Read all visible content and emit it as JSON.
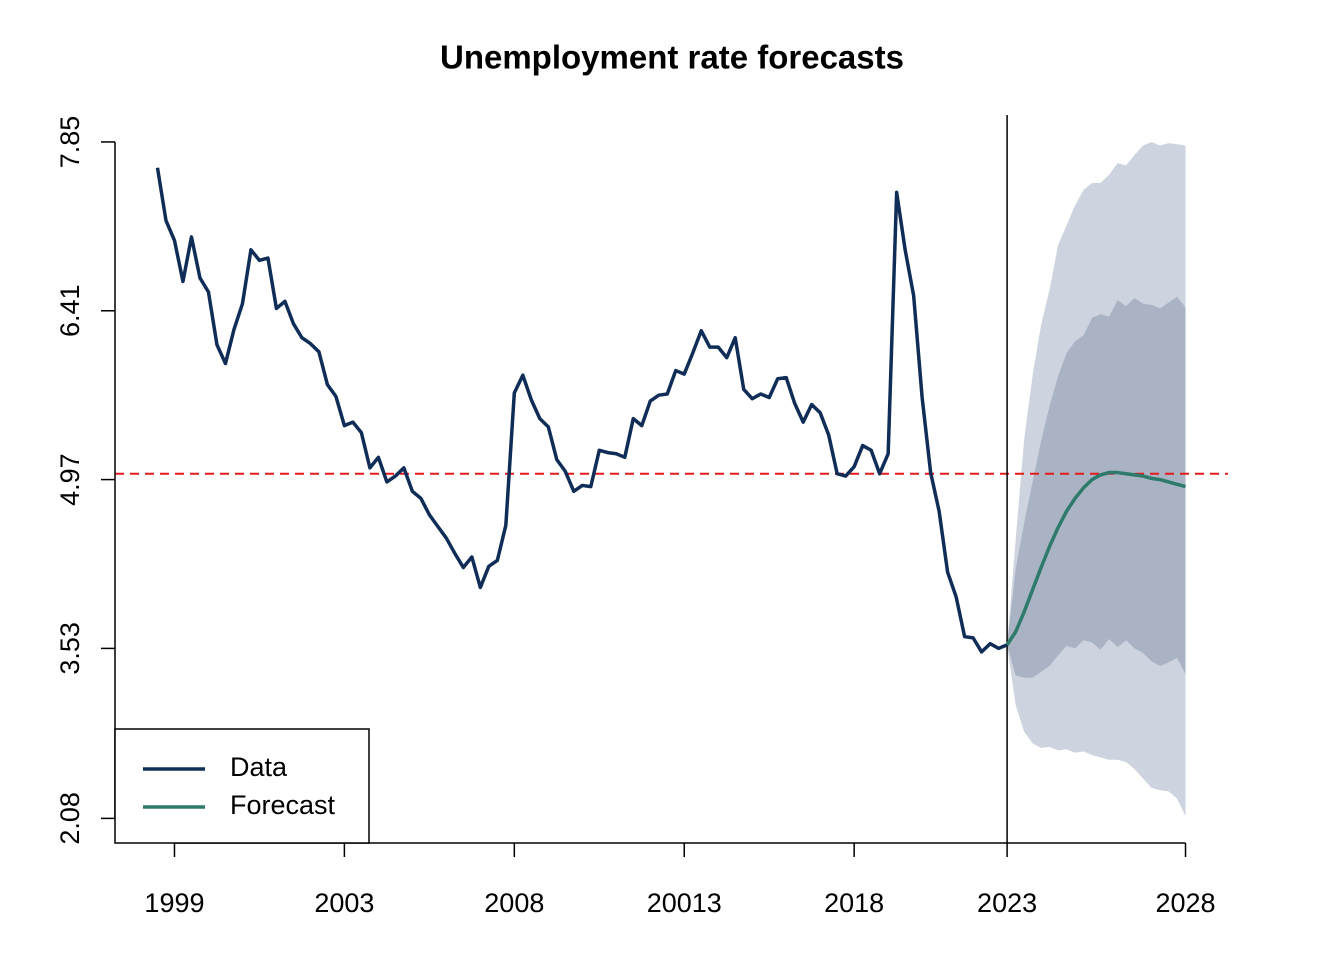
{
  "chart_data": {
    "type": "line",
    "title": "Unemployment rate forecasts",
    "xlim": [
      -4,
      127
    ],
    "ylim": [
      1.87,
      8.08
    ],
    "xticks": [
      {
        "value": 3,
        "label": "1999"
      },
      {
        "value": 23,
        "label": "2003"
      },
      {
        "value": 43,
        "label": "2008"
      },
      {
        "value": 63,
        "label": "20013"
      },
      {
        "value": 83,
        "label": "2018"
      },
      {
        "value": 101,
        "label": "2023"
      },
      {
        "value": 122,
        "label": "2028"
      }
    ],
    "yticks": [
      2.08,
      3.53,
      4.97,
      6.41,
      7.85
    ],
    "legend": "bottomleft",
    "hline": {
      "value": 5.02,
      "color": "#e41a1c"
    },
    "vline": 101,
    "series": [
      {
        "name": "Data",
        "color": "#0f2d57",
        "x": [
          1,
          2,
          3,
          4,
          5,
          6,
          7,
          8,
          9,
          10,
          11,
          12,
          13,
          14,
          15,
          16,
          17,
          18,
          19,
          20,
          21,
          22,
          23,
          24,
          25,
          26,
          27,
          28,
          29,
          30,
          31,
          32,
          33,
          34,
          35,
          36,
          37,
          38,
          39,
          40,
          41,
          42,
          43,
          44,
          45,
          46,
          47,
          48,
          49,
          50,
          51,
          52,
          53,
          54,
          55,
          56,
          57,
          58,
          59,
          60,
          61,
          62,
          63,
          64,
          65,
          66,
          67,
          68,
          69,
          70,
          71,
          72,
          73,
          74,
          75,
          76,
          77,
          78,
          79,
          80,
          81,
          82,
          83,
          84,
          85,
          86,
          87,
          88,
          89,
          90,
          91,
          92,
          93,
          94,
          95,
          96,
          97,
          98,
          99,
          100,
          101
        ],
        "values": [
          7.63,
          7.18,
          7.01,
          6.66,
          7.04,
          6.69,
          6.57,
          6.12,
          5.96,
          6.25,
          6.47,
          6.93,
          6.84,
          6.86,
          6.43,
          6.49,
          6.3,
          6.18,
          6.13,
          6.06,
          5.78,
          5.68,
          5.43,
          5.46,
          5.37,
          5.07,
          5.16,
          4.95,
          5.0,
          5.07,
          4.87,
          4.81,
          4.67,
          4.57,
          4.47,
          4.34,
          4.22,
          4.31,
          4.05,
          4.23,
          4.28,
          4.58,
          5.71,
          5.86,
          5.65,
          5.49,
          5.42,
          5.14,
          5.04,
          4.87,
          4.92,
          4.91,
          5.22,
          5.2,
          5.19,
          5.16,
          5.49,
          5.43,
          5.64,
          5.69,
          5.7,
          5.9,
          5.87,
          6.05,
          6.24,
          6.1,
          6.1,
          6.01,
          6.18,
          5.74,
          5.66,
          5.7,
          5.67,
          5.83,
          5.84,
          5.62,
          5.46,
          5.61,
          5.54,
          5.35,
          5.02,
          5.0,
          5.08,
          5.26,
          5.22,
          5.02,
          5.19,
          7.42,
          6.93,
          6.54,
          5.67,
          5.03,
          4.7,
          4.18,
          3.97,
          3.63,
          3.62,
          3.5,
          3.57,
          3.53,
          3.56
        ]
      },
      {
        "name": "Forecast",
        "color": "#2e7a6b",
        "x": [
          101,
          102,
          103,
          104,
          105,
          106,
          107,
          108,
          109,
          110,
          111,
          112,
          113,
          114,
          115,
          116,
          117,
          118,
          119,
          120,
          121,
          122
        ],
        "values": [
          3.56,
          3.67,
          3.84,
          4.03,
          4.22,
          4.4,
          4.56,
          4.7,
          4.81,
          4.9,
          4.97,
          5.01,
          5.03,
          5.03,
          5.02,
          5.01,
          5.0,
          4.98,
          4.97,
          4.95,
          4.93,
          4.91
        ]
      }
    ],
    "bands": [
      {
        "color": "#ced4df",
        "lower": [
          3.56,
          3.05,
          2.82,
          2.72,
          2.68,
          2.69,
          2.66,
          2.67,
          2.64,
          2.65,
          2.62,
          2.6,
          2.58,
          2.58,
          2.56,
          2.5,
          2.42,
          2.34,
          2.32,
          2.31,
          2.25,
          2.1
        ],
        "upper": [
          3.56,
          4.45,
          5.31,
          5.86,
          6.29,
          6.59,
          6.97,
          7.14,
          7.31,
          7.44,
          7.5,
          7.5,
          7.57,
          7.67,
          7.65,
          7.74,
          7.82,
          7.85,
          7.82,
          7.84,
          7.83,
          7.82
        ]
      },
      {
        "color": "#a9b3c4",
        "lower": [
          3.56,
          3.3,
          3.28,
          3.28,
          3.33,
          3.38,
          3.47,
          3.55,
          3.53,
          3.6,
          3.58,
          3.52,
          3.61,
          3.54,
          3.6,
          3.53,
          3.49,
          3.42,
          3.38,
          3.41,
          3.45,
          3.31
        ],
        "upper": [
          3.56,
          4.2,
          4.6,
          4.95,
          5.3,
          5.6,
          5.85,
          6.05,
          6.15,
          6.2,
          6.35,
          6.38,
          6.36,
          6.5,
          6.45,
          6.52,
          6.47,
          6.46,
          6.43,
          6.48,
          6.53,
          6.44
        ]
      }
    ]
  }
}
